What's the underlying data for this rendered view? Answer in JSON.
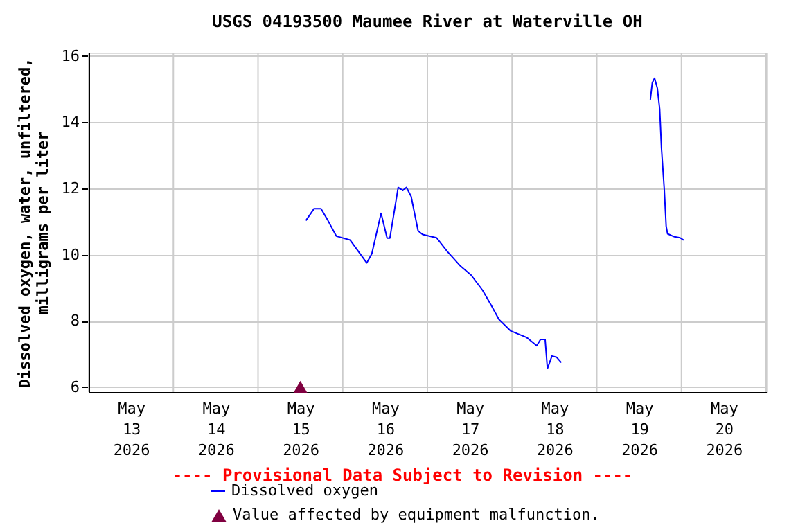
{
  "chart_data": {
    "type": "line",
    "title": "USGS 04193500 Maumee River at Waterville OH",
    "ylabel": "Dissolved oxygen, water, unfiltered,\nmilligrams per liter",
    "annotations": [
      "---- Provisional Data Subject to Revision ----"
    ],
    "xlim": [
      "2026-05-13T00:00",
      "2026-05-21T00:00"
    ],
    "xticks": [
      {
        "value": "2026-05-13T00:00",
        "label": null
      },
      {
        "value": "2026-05-13T12:00",
        "label": "May 13 2026"
      },
      {
        "value": "2026-05-14T00:00",
        "label": null
      },
      {
        "value": "2026-05-14T12:00",
        "label": "May 14 2026"
      },
      {
        "value": "2026-05-15T00:00",
        "label": null
      },
      {
        "value": "2026-05-15T12:00",
        "label": "May 15 2026"
      },
      {
        "value": "2026-05-16T00:00",
        "label": null
      },
      {
        "value": "2026-05-16T12:00",
        "label": "May 16 2026"
      },
      {
        "value": "2026-05-17T00:00",
        "label": null
      },
      {
        "value": "2026-05-17T12:00",
        "label": "May 17 2026"
      },
      {
        "value": "2026-05-18T00:00",
        "label": null
      },
      {
        "value": "2026-05-18T12:00",
        "label": "May 18 2026"
      },
      {
        "value": "2026-05-19T00:00",
        "label": null
      },
      {
        "value": "2026-05-19T12:00",
        "label": "May 19 2026"
      },
      {
        "value": "2026-05-20T00:00",
        "label": null
      },
      {
        "value": "2026-05-20T12:00",
        "label": "May 20 2026"
      },
      {
        "value": "2026-05-21T00:00",
        "label": null
      }
    ],
    "ylim": [
      5.85,
      16.1
    ],
    "yticks": [
      6,
      8,
      10,
      12,
      14,
      16
    ],
    "grid": true,
    "legend": "bottom",
    "series": [
      {
        "name": "Dissolved oxygen",
        "color": "#0000ff",
        "x": [
          "2026-05-15T13:34",
          "2026-05-15T15:53",
          "2026-05-15T17:51",
          "2026-05-15T19:49",
          "2026-05-15T22:11",
          "2026-05-16T02:07",
          "2026-05-16T06:49",
          "2026-05-16T08:15",
          "2026-05-16T10:52",
          "2026-05-16T12:35",
          "2026-05-16T13:22",
          "2026-05-16T15:43",
          "2026-05-16T17:02",
          "2026-05-16T18:04",
          "2026-05-16T19:23",
          "2026-05-16T21:22",
          "2026-05-16T22:39",
          "2026-05-17T02:35",
          "2026-05-17T05:37",
          "2026-05-17T09:09",
          "2026-05-17T12:25",
          "2026-05-17T15:40",
          "2026-05-17T18:19",
          "2026-05-17T20:17",
          "2026-05-17T23:33",
          "2026-05-18T04:08",
          "2026-05-18T06:59",
          "2026-05-18T08:04",
          "2026-05-18T09:22",
          "2026-05-18T10:01",
          "2026-05-18T11:18",
          "2026-05-18T12:39",
          "2026-05-18T13:57",
          "2026-05-19T00:00",
          "2026-05-19T15:11",
          "2026-05-19T15:44",
          "2026-05-19T16:23",
          "2026-05-19T17:10",
          "2026-05-19T17:50",
          "2026-05-19T18:20",
          "2026-05-19T19:08",
          "2026-05-19T19:40",
          "2026-05-19T20:04",
          "2026-05-19T22:02",
          "2026-05-19T23:37",
          "2026-05-20T00:37"
        ],
        "values": [
          11.03,
          11.39,
          11.39,
          11.03,
          10.56,
          10.44,
          9.75,
          10.03,
          11.25,
          10.5,
          10.5,
          12.03,
          11.94,
          12.03,
          11.76,
          10.72,
          10.61,
          10.51,
          10.1,
          9.68,
          9.38,
          8.92,
          8.43,
          8.04,
          7.7,
          7.5,
          7.25,
          7.44,
          7.44,
          6.56,
          6.94,
          6.9,
          6.74,
          null,
          14.68,
          15.19,
          15.33,
          15.03,
          14.4,
          13.22,
          11.97,
          10.86,
          10.63,
          10.54,
          10.51,
          10.44
        ]
      },
      {
        "name": "Value affected by equipment malfunction.",
        "type": "scatter",
        "marker": "triangle",
        "color": "#800040",
        "x": [
          "2026-05-15T12:00"
        ],
        "values": [
          6
        ]
      }
    ]
  }
}
